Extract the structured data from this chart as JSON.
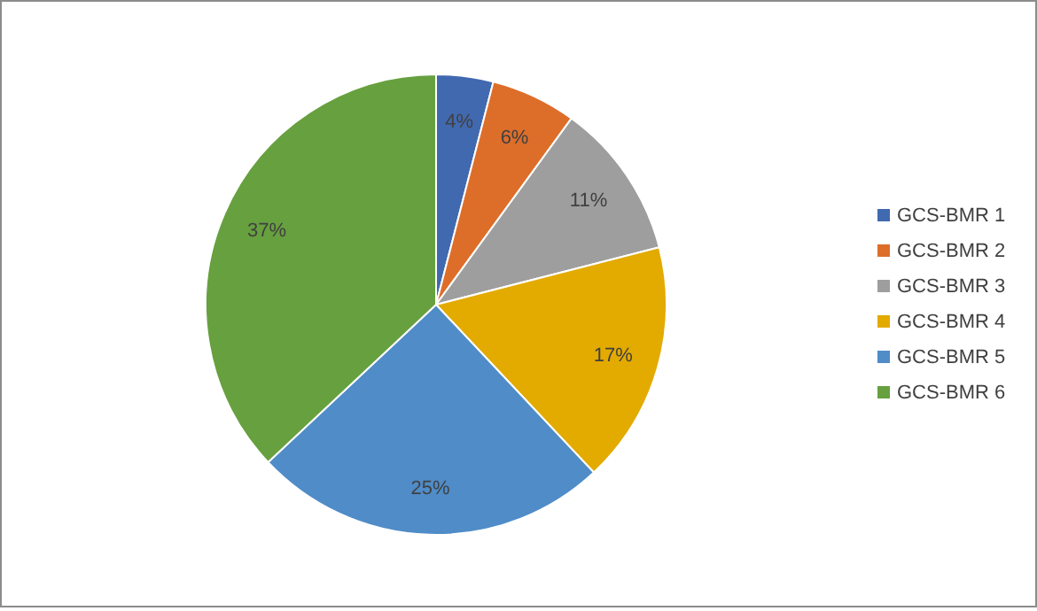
{
  "chart_data": {
    "type": "pie",
    "categories": [
      "GCS-BMR 1",
      "GCS-BMR 2",
      "GCS-BMR 3",
      "GCS-BMR 4",
      "GCS-BMR 5",
      "GCS-BMR 6"
    ],
    "values": [
      4,
      6,
      11,
      17,
      25,
      37
    ],
    "colors": [
      "#4169b0",
      "#dd6e2a",
      "#9e9e9e",
      "#e3aa00",
      "#4f8cc8",
      "#67a03f"
    ],
    "value_labels": [
      "4%",
      "6%",
      "11%",
      "17%",
      "25%",
      "37%"
    ],
    "legend": "right"
  }
}
